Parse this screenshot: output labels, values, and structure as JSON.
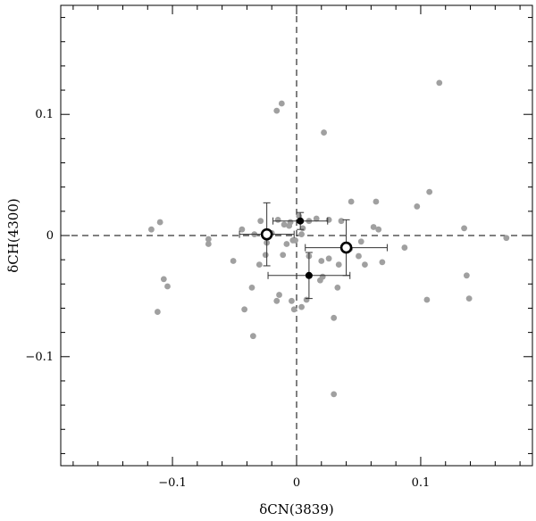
{
  "chart_data": {
    "type": "scatter",
    "title": "",
    "xlabel": "δCN(3839)",
    "ylabel": "δCH(4300)",
    "xlim": [
      -0.19,
      0.19
    ],
    "ylim": [
      -0.19,
      0.19
    ],
    "xticks": [
      -0.1,
      0,
      0.1
    ],
    "xtick_labels": [
      "−0.1",
      "0",
      "0.1"
    ],
    "yticks": [
      -0.1,
      0,
      0.1
    ],
    "ytick_labels": [
      "−0.1",
      "0",
      "0.1"
    ],
    "grid": false,
    "reference_lines": {
      "x": 0,
      "y": 0,
      "style": "dashed"
    },
    "colors": {
      "gray": "#a0a0a0",
      "black": "#000000"
    },
    "series": [
      {
        "marker": "gray-dot",
        "points": [
          [
            0.115,
            0.126
          ],
          [
            -0.012,
            0.109
          ],
          [
            -0.016,
            0.103
          ],
          [
            0.022,
            0.085
          ],
          [
            0.107,
            0.036
          ],
          [
            0.097,
            0.024
          ],
          [
            -0.11,
            0.011
          ],
          [
            -0.117,
            0.005
          ],
          [
            0.044,
            0.028
          ],
          [
            0.064,
            0.028
          ],
          [
            0.135,
            0.006
          ],
          [
            0.169,
            -0.002
          ],
          [
            0.087,
            -0.01
          ],
          [
            0.066,
            0.005
          ],
          [
            0.062,
            0.007
          ],
          [
            0.052,
            -0.005
          ],
          [
            0.05,
            -0.017
          ],
          [
            0.043,
            -0.011
          ],
          [
            0.069,
            -0.022
          ],
          [
            0.055,
            -0.024
          ],
          [
            -0.029,
            0.012
          ],
          [
            -0.015,
            0.013
          ],
          [
            -0.01,
            0.009
          ],
          [
            -0.005,
            0.011
          ],
          [
            0.002,
            0.016
          ],
          [
            0.01,
            0.012
          ],
          [
            0.016,
            0.014
          ],
          [
            0.026,
            0.013
          ],
          [
            0.036,
            0.012
          ],
          [
            -0.02,
            0.002
          ],
          [
            -0.026,
            0.001
          ],
          [
            -0.034,
            0.001
          ],
          [
            -0.044,
            0.005
          ],
          [
            -0.006,
            0.008
          ],
          [
            -0.003,
            -0.004
          ],
          [
            0.004,
            0.001
          ],
          [
            0.005,
            0.006
          ],
          [
            -0.008,
            -0.007
          ],
          [
            -0.071,
            -0.003
          ],
          [
            -0.071,
            -0.007
          ],
          [
            -0.051,
            -0.021
          ],
          [
            -0.024,
            -0.006
          ],
          [
            -0.025,
            -0.016
          ],
          [
            -0.03,
            -0.024
          ],
          [
            -0.011,
            -0.016
          ],
          [
            -0.001,
            -0.004
          ],
          [
            0.01,
            -0.017
          ],
          [
            0.02,
            -0.021
          ],
          [
            0.026,
            -0.019
          ],
          [
            0.034,
            -0.024
          ],
          [
            0.019,
            -0.037
          ],
          [
            0.021,
            -0.034
          ],
          [
            0.033,
            -0.043
          ],
          [
            -0.036,
            -0.043
          ],
          [
            -0.014,
            -0.049
          ],
          [
            -0.016,
            -0.054
          ],
          [
            -0.004,
            -0.054
          ],
          [
            0.008,
            -0.053
          ],
          [
            0.004,
            -0.059
          ],
          [
            -0.002,
            -0.061
          ],
          [
            -0.042,
            -0.061
          ],
          [
            -0.035,
            -0.083
          ],
          [
            0.03,
            -0.068
          ],
          [
            0.03,
            -0.131
          ],
          [
            -0.107,
            -0.036
          ],
          [
            -0.104,
            -0.042
          ],
          [
            -0.112,
            -0.063
          ],
          [
            0.105,
            -0.053
          ],
          [
            0.137,
            -0.033
          ],
          [
            0.139,
            -0.052
          ]
        ]
      },
      {
        "marker": "black-dot",
        "points": [
          [
            0.003,
            0.012
          ],
          [
            0.01,
            -0.033
          ]
        ],
        "xerr": [
          0.022,
          0.033
        ],
        "yerr": [
          0.007,
          0.019
        ]
      },
      {
        "marker": "open-circle",
        "points": [
          [
            -0.024,
            0.001
          ],
          [
            0.04,
            -0.01
          ]
        ],
        "xerr": [
          0.022,
          0.033
        ],
        "yerr": [
          0.026,
          0.023
        ]
      }
    ]
  }
}
